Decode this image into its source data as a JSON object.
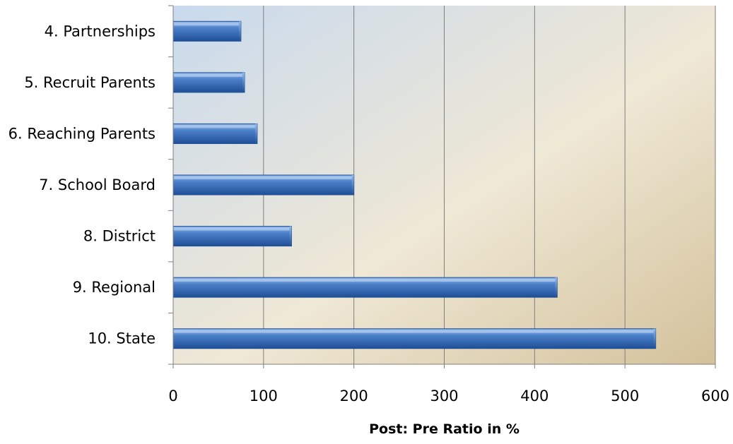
{
  "chart_data": {
    "type": "bar",
    "orientation": "horizontal",
    "categories": [
      "4. Partnerships",
      "5. Recruit Parents",
      "6. Reaching Parents",
      "7. School Board",
      "8. District",
      "9. Regional",
      "10. State"
    ],
    "values": [
      75,
      79,
      93,
      200,
      131,
      425,
      534
    ],
    "xlabel": "Post: Pre Ratio in %",
    "ylabel": "",
    "xlim": [
      0,
      600
    ],
    "xticks": [
      "0",
      "100",
      "200",
      "300",
      "400",
      "500",
      "600"
    ],
    "grid": "vertical gridlines at each x tick",
    "legend": "none",
    "colors": {
      "bar_fill": "#4a7fc8",
      "bar_dark": "#1f4f96",
      "bar_light": "#8fb8ec",
      "plot_bg_start": "#c9daee",
      "plot_bg_mid": "#efe8d5",
      "plot_bg_end": "#d3c19a",
      "grid": "#7f7f7f"
    }
  }
}
